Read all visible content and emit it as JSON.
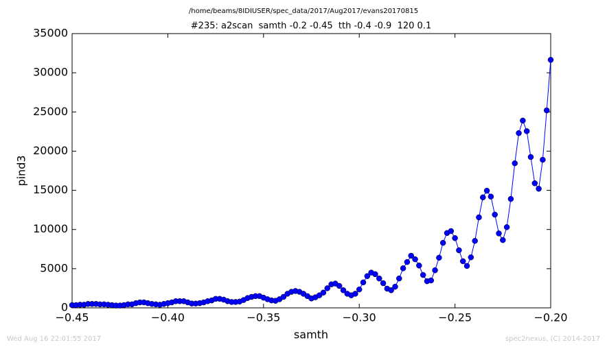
{
  "chart_data": {
    "type": "line",
    "suptitle": "/home/beams/8IDIUSER/spec_data/2017/Aug2017/evans20170815",
    "title": "#235: a2scan  samth -0.2 -0.45  tth -0.4 -0.9  120 0.1",
    "x_label": "samth",
    "y_label": "pind3",
    "footer_left": "Wed Aug 16 22:01:55 2017",
    "footer_right": "spec2nexus, (C) 2014-2017",
    "x": [
      -0.45,
      -0.44792,
      -0.44583,
      -0.44375,
      -0.44167,
      -0.43958,
      -0.4375,
      -0.43542,
      -0.43333,
      -0.43125,
      -0.42917,
      -0.42708,
      -0.425,
      -0.42292,
      -0.42083,
      -0.41875,
      -0.41667,
      -0.41458,
      -0.4125,
      -0.41042,
      -0.40833,
      -0.40625,
      -0.40417,
      -0.40208,
      -0.4,
      -0.39792,
      -0.39583,
      -0.39375,
      -0.39167,
      -0.38958,
      -0.3875,
      -0.38542,
      -0.38333,
      -0.38125,
      -0.37917,
      -0.37708,
      -0.375,
      -0.37292,
      -0.37083,
      -0.36875,
      -0.36667,
      -0.36458,
      -0.3625,
      -0.36042,
      -0.35833,
      -0.35625,
      -0.35417,
      -0.35208,
      -0.35,
      -0.34792,
      -0.34583,
      -0.34375,
      -0.34167,
      -0.33958,
      -0.3375,
      -0.33542,
      -0.33333,
      -0.33125,
      -0.32917,
      -0.32708,
      -0.325,
      -0.32292,
      -0.32083,
      -0.31875,
      -0.31667,
      -0.31458,
      -0.3125,
      -0.31042,
      -0.30833,
      -0.30625,
      -0.30417,
      -0.30208,
      -0.3,
      -0.29792,
      -0.29583,
      -0.29375,
      -0.29167,
      -0.28958,
      -0.2875,
      -0.28542,
      -0.28333,
      -0.28125,
      -0.27917,
      -0.27708,
      -0.275,
      -0.27292,
      -0.27083,
      -0.26875,
      -0.26667,
      -0.26458,
      -0.2625,
      -0.26042,
      -0.25833,
      -0.25625,
      -0.25417,
      -0.25208,
      -0.25,
      -0.24792,
      -0.24583,
      -0.24375,
      -0.24167,
      -0.23958,
      -0.2375,
      -0.23542,
      -0.23333,
      -0.23125,
      -0.22917,
      -0.22708,
      -0.225,
      -0.22292,
      -0.22083,
      -0.21875,
      -0.21667,
      -0.21458,
      -0.2125,
      -0.21042,
      -0.20833,
      -0.20625,
      -0.20417,
      -0.20208,
      -0.2
    ],
    "series": [
      {
        "color": "#0000ff",
        "values": [
          350,
          350,
          400,
          400,
          500,
          500,
          500,
          450,
          450,
          400,
          350,
          300,
          300,
          350,
          450,
          450,
          600,
          700,
          700,
          600,
          500,
          450,
          400,
          500,
          600,
          700,
          850,
          850,
          850,
          700,
          550,
          550,
          600,
          700,
          850,
          950,
          1150,
          1150,
          1050,
          850,
          750,
          750,
          800,
          1000,
          1250,
          1400,
          1500,
          1500,
          1300,
          1100,
          950,
          900,
          1100,
          1400,
          1800,
          2050,
          2150,
          2050,
          1800,
          1500,
          1200,
          1350,
          1600,
          1950,
          2500,
          3000,
          3100,
          2800,
          2250,
          1800,
          1600,
          1800,
          2350,
          3250,
          4050,
          4500,
          4300,
          3750,
          3150,
          2450,
          2250,
          2700,
          3750,
          5050,
          5850,
          6650,
          6200,
          5400,
          4200,
          3400,
          3500,
          4800,
          6400,
          8300,
          9550,
          9800,
          8900,
          7350,
          5950,
          5350,
          6450,
          8550,
          11550,
          14100,
          14950,
          14200,
          11900,
          9500,
          8650,
          10300,
          13900,
          18450,
          22300,
          23900,
          22550,
          19250,
          15900,
          15200,
          18900,
          25200,
          31650
        ]
      }
    ],
    "xlim": [
      -0.45,
      -0.2
    ],
    "xticks": [
      {
        "value": -0.45,
        "label": "−0.45"
      },
      {
        "value": -0.4,
        "label": "−0.40"
      },
      {
        "value": -0.35,
        "label": "−0.35"
      },
      {
        "value": -0.3,
        "label": "−0.30"
      },
      {
        "value": -0.25,
        "label": "−0.25"
      },
      {
        "value": -0.2,
        "label": "−0.20"
      }
    ],
    "ylim": [
      0,
      35000
    ],
    "yticks": [
      0,
      5000,
      10000,
      15000,
      20000,
      25000,
      30000,
      35000
    ],
    "grid": false
  }
}
